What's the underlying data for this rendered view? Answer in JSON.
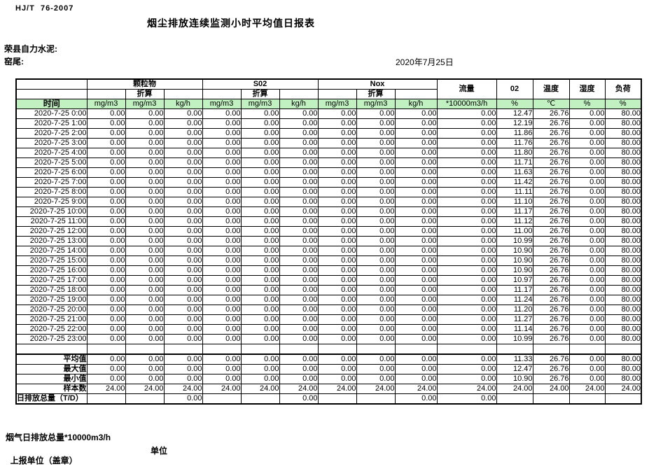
{
  "page": {
    "standard": "HJ/T  76-2007",
    "title": "烟尘排放连续监测小时平均值日报表",
    "company": "荣县自力水泥:",
    "location": "窑尾:",
    "date": "2020年7月25日",
    "footnote": "烟气日排放总量*10000m3/h",
    "report_unit": "上报单位（盖章）",
    "unit_label": "单位"
  },
  "table": {
    "time_header": "时间",
    "converted_label": "折算",
    "groups": [
      {
        "label": "颗粒物"
      },
      {
        "label": "S02"
      },
      {
        "label": "Nox"
      }
    ],
    "single_cols": [
      "流量",
      "02",
      "温度",
      "湿度",
      "负荷"
    ],
    "units": [
      "mg/m3",
      "mg/m3",
      "kg/h",
      "mg/m3",
      "mg/m3",
      "kg/h",
      "mg/m3",
      "mg/m3",
      "kg/h",
      "*10000m3/h",
      "%",
      "℃",
      "%",
      "%"
    ],
    "rows": [
      {
        "time": "2020-7-25 0:00",
        "values": [
          "0.00",
          "0.00",
          "0.00",
          "0.00",
          "0.00",
          "0.00",
          "0.00",
          "0.00",
          "0.00",
          "0.00",
          "12.47",
          "26.76",
          "0.00",
          "80.00"
        ]
      },
      {
        "time": "2020-7-25 1:00",
        "values": [
          "0.00",
          "0.00",
          "0.00",
          "0.00",
          "0.00",
          "0.00",
          "0.00",
          "0.00",
          "0.00",
          "0.00",
          "12.19",
          "26.76",
          "0.00",
          "80.00"
        ]
      },
      {
        "time": "2020-7-25 2:00",
        "values": [
          "0.00",
          "0.00",
          "0.00",
          "0.00",
          "0.00",
          "0.00",
          "0.00",
          "0.00",
          "0.00",
          "0.00",
          "11.86",
          "26.76",
          "0.00",
          "80.00"
        ]
      },
      {
        "time": "2020-7-25 3:00",
        "values": [
          "0.00",
          "0.00",
          "0.00",
          "0.00",
          "0.00",
          "0.00",
          "0.00",
          "0.00",
          "0.00",
          "0.00",
          "11.76",
          "26.76",
          "0.00",
          "80.00"
        ]
      },
      {
        "time": "2020-7-25 4:00",
        "values": [
          "0.00",
          "0.00",
          "0.00",
          "0.00",
          "0.00",
          "0.00",
          "0.00",
          "0.00",
          "0.00",
          "0.00",
          "11.80",
          "26.76",
          "0.00",
          "80.00"
        ]
      },
      {
        "time": "2020-7-25 5:00",
        "values": [
          "0.00",
          "0.00",
          "0.00",
          "0.00",
          "0.00",
          "0.00",
          "0.00",
          "0.00",
          "0.00",
          "0.00",
          "11.71",
          "26.76",
          "0.00",
          "80.00"
        ]
      },
      {
        "time": "2020-7-25 6:00",
        "values": [
          "0.00",
          "0.00",
          "0.00",
          "0.00",
          "0.00",
          "0.00",
          "0.00",
          "0.00",
          "0.00",
          "0.00",
          "11.63",
          "26.76",
          "0.00",
          "80.00"
        ]
      },
      {
        "time": "2020-7-25 7:00",
        "values": [
          "0.00",
          "0.00",
          "0.00",
          "0.00",
          "0.00",
          "0.00",
          "0.00",
          "0.00",
          "0.00",
          "0.00",
          "11.42",
          "26.76",
          "0.00",
          "80.00"
        ]
      },
      {
        "time": "2020-7-25 8:00",
        "values": [
          "0.00",
          "0.00",
          "0.00",
          "0.00",
          "0.00",
          "0.00",
          "0.00",
          "0.00",
          "0.00",
          "0.00",
          "11.11",
          "26.76",
          "0.00",
          "80.00"
        ]
      },
      {
        "time": "2020-7-25 9:00",
        "values": [
          "0.00",
          "0.00",
          "0.00",
          "0.00",
          "0.00",
          "0.00",
          "0.00",
          "0.00",
          "0.00",
          "0.00",
          "11.10",
          "26.76",
          "0.00",
          "80.00"
        ]
      },
      {
        "time": "2020-7-25 10:00",
        "values": [
          "0.00",
          "0.00",
          "0.00",
          "0.00",
          "0.00",
          "0.00",
          "0.00",
          "0.00",
          "0.00",
          "0.00",
          "11.17",
          "26.76",
          "0.00",
          "80.00"
        ]
      },
      {
        "time": "2020-7-25 11:00",
        "values": [
          "0.00",
          "0.00",
          "0.00",
          "0.00",
          "0.00",
          "0.00",
          "0.00",
          "0.00",
          "0.00",
          "0.00",
          "11.12",
          "26.76",
          "0.00",
          "80.00"
        ]
      },
      {
        "time": "2020-7-25 12:00",
        "values": [
          "0.00",
          "0.00",
          "0.00",
          "0.00",
          "0.00",
          "0.00",
          "0.00",
          "0.00",
          "0.00",
          "0.00",
          "11.00",
          "26.76",
          "0.00",
          "80.00"
        ]
      },
      {
        "time": "2020-7-25 13:00",
        "values": [
          "0.00",
          "0.00",
          "0.00",
          "0.00",
          "0.00",
          "0.00",
          "0.00",
          "0.00",
          "0.00",
          "0.00",
          "10.99",
          "26.76",
          "0.00",
          "80.00"
        ]
      },
      {
        "time": "2020-7-25 14:00",
        "values": [
          "0.00",
          "0.00",
          "0.00",
          "0.00",
          "0.00",
          "0.00",
          "0.00",
          "0.00",
          "0.00",
          "0.00",
          "10.90",
          "26.76",
          "0.00",
          "80.00"
        ]
      },
      {
        "time": "2020-7-25 15:00",
        "values": [
          "0.00",
          "0.00",
          "0.00",
          "0.00",
          "0.00",
          "0.00",
          "0.00",
          "0.00",
          "0.00",
          "0.00",
          "10.90",
          "26.76",
          "0.00",
          "80.00"
        ]
      },
      {
        "time": "2020-7-25 16:00",
        "values": [
          "0.00",
          "0.00",
          "0.00",
          "0.00",
          "0.00",
          "0.00",
          "0.00",
          "0.00",
          "0.00",
          "0.00",
          "10.90",
          "26.76",
          "0.00",
          "80.00"
        ]
      },
      {
        "time": "2020-7-25 17:00",
        "values": [
          "0.00",
          "0.00",
          "0.00",
          "0.00",
          "0.00",
          "0.00",
          "0.00",
          "0.00",
          "0.00",
          "0.00",
          "10.97",
          "26.76",
          "0.00",
          "80.00"
        ]
      },
      {
        "time": "2020-7-25 18:00",
        "values": [
          "0.00",
          "0.00",
          "0.00",
          "0.00",
          "0.00",
          "0.00",
          "0.00",
          "0.00",
          "0.00",
          "0.00",
          "11.17",
          "26.76",
          "0.00",
          "80.00"
        ]
      },
      {
        "time": "2020-7-25 19:00",
        "values": [
          "0.00",
          "0.00",
          "0.00",
          "0.00",
          "0.00",
          "0.00",
          "0.00",
          "0.00",
          "0.00",
          "0.00",
          "11.24",
          "26.76",
          "0.00",
          "80.00"
        ]
      },
      {
        "time": "2020-7-25 20:00",
        "values": [
          "0.00",
          "0.00",
          "0.00",
          "0.00",
          "0.00",
          "0.00",
          "0.00",
          "0.00",
          "0.00",
          "0.00",
          "11.20",
          "26.76",
          "0.00",
          "80.00"
        ]
      },
      {
        "time": "2020-7-25 21:00",
        "values": [
          "0.00",
          "0.00",
          "0.00",
          "0.00",
          "0.00",
          "0.00",
          "0.00",
          "0.00",
          "0.00",
          "0.00",
          "11.27",
          "26.76",
          "0.00",
          "80.00"
        ]
      },
      {
        "time": "2020-7-25 22:00",
        "values": [
          "0.00",
          "0.00",
          "0.00",
          "0.00",
          "0.00",
          "0.00",
          "0.00",
          "0.00",
          "0.00",
          "0.00",
          "11.14",
          "26.76",
          "0.00",
          "80.00"
        ]
      },
      {
        "time": "2020-7-25 23:00",
        "values": [
          "0.00",
          "0.00",
          "0.00",
          "0.00",
          "0.00",
          "0.00",
          "0.00",
          "0.00",
          "0.00",
          "0.00",
          "10.99",
          "26.76",
          "0.00",
          "80.00"
        ]
      }
    ],
    "summary": [
      {
        "label": "平均值",
        "align": "right",
        "values": [
          "0.00",
          "0.00",
          "0.00",
          "0.00",
          "0.00",
          "0.00",
          "0.00",
          "0.00",
          "0.00",
          "0.00",
          "11.33",
          "26.76",
          "0.00",
          "80.00"
        ]
      },
      {
        "label": "最大值",
        "align": "right",
        "values": [
          "0.00",
          "0.00",
          "0.00",
          "0.00",
          "0.00",
          "0.00",
          "0.00",
          "0.00",
          "0.00",
          "0.00",
          "12.47",
          "26.76",
          "0.00",
          "80.00"
        ]
      },
      {
        "label": "最小值",
        "align": "right",
        "values": [
          "0.00",
          "0.00",
          "0.00",
          "0.00",
          "0.00",
          "0.00",
          "0.00",
          "0.00",
          "0.00",
          "0.00",
          "10.90",
          "26.76",
          "0.00",
          "80.00"
        ]
      },
      {
        "label": "样本数",
        "align": "right",
        "values": [
          "24.00",
          "24.00",
          "24.00",
          "24.00",
          "24.00",
          "24.00",
          "24.00",
          "24.00",
          "24.00",
          "24.00",
          "24.00",
          "24.00",
          "24.00",
          "24.00"
        ]
      },
      {
        "label": "日排放总量（T/D）",
        "align": "left",
        "values": [
          "",
          "",
          "0.00",
          "",
          "",
          "0.00",
          "",
          "",
          "0.00",
          "0.00",
          "",
          "",
          "",
          ""
        ]
      }
    ]
  },
  "colors": {
    "header_green": "#c1f0c1",
    "border": "#000000"
  }
}
